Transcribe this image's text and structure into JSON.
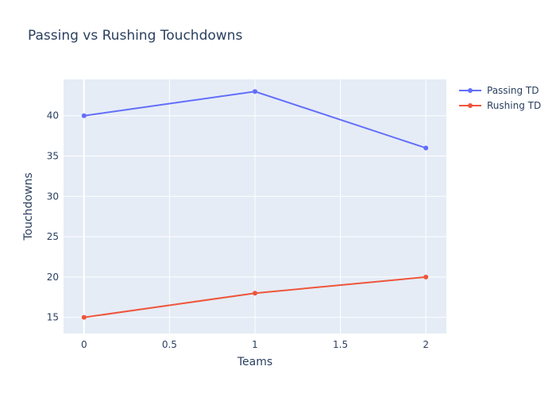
{
  "chart_data": {
    "type": "line",
    "title": "Passing vs Rushing Touchdowns",
    "xlabel": "Teams",
    "ylabel": "Touchdowns",
    "x": [
      0,
      1,
      2
    ],
    "xlim": [
      -0.12,
      2.12
    ],
    "ylim": [
      13,
      44.5
    ],
    "xticks": [
      0,
      0.5,
      1,
      1.5,
      2
    ],
    "xtick_labels": [
      "0",
      "0.5",
      "1",
      "1.5",
      "2"
    ],
    "yticks": [
      15,
      20,
      25,
      30,
      35,
      40
    ],
    "ytick_labels": [
      "15",
      "20",
      "25",
      "30",
      "35",
      "40"
    ],
    "grid": true,
    "legend_position": "top-right",
    "series": [
      {
        "name": "Passing TD",
        "values": [
          40,
          43,
          36
        ],
        "color": "#636efa"
      },
      {
        "name": "Rushing TD",
        "values": [
          15,
          18,
          20
        ],
        "color": "#ef553b"
      }
    ]
  }
}
